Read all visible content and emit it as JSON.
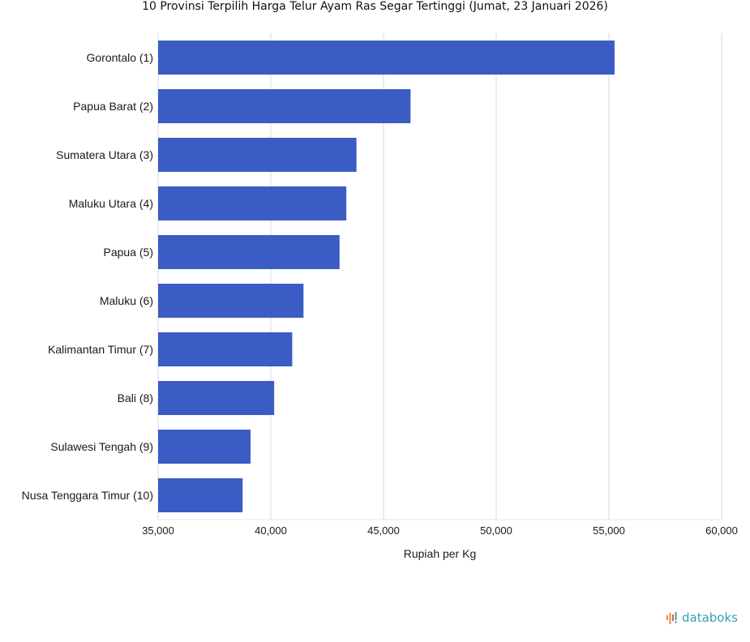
{
  "chart_data": {
    "type": "bar",
    "orientation": "horizontal",
    "title": "10 Provinsi Terpilih Harga Telur Ayam Ras Segar Tertinggi (Jumat, 23 Januari 2026)",
    "xlabel": "Rupiah per Kg",
    "ylabel": "",
    "categories": [
      "Gorontalo (1)",
      "Papua Barat (2)",
      "Sumatera Utara (3)",
      "Maluku Utara (4)",
      "Papua (5)",
      "Maluku (6)",
      "Kalimantan Timur (7)",
      "Bali (8)",
      "Sulawesi Tengah (9)",
      "Nusa Tenggara Timur (10)"
    ],
    "values": [
      55250,
      46200,
      43800,
      43350,
      43050,
      41450,
      40950,
      40150,
      39100,
      38750
    ],
    "xlim": [
      35000,
      60000
    ],
    "xticks": [
      35000,
      40000,
      45000,
      50000,
      55000,
      60000
    ],
    "xtick_labels": [
      "35,000",
      "40,000",
      "45,000",
      "50,000",
      "55,000",
      "60,000"
    ],
    "grid": true,
    "bar_color": "#3b5cc4",
    "grid_color": "#d9d9d9"
  },
  "brand": {
    "name": "databoks",
    "color": "#3b9fb5",
    "icon": "databoks-logo-icon"
  }
}
